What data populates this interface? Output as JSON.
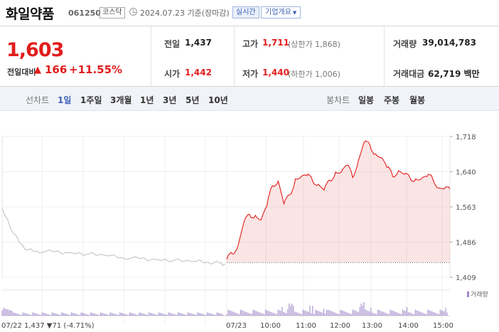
{
  "header": {
    "stock_name": "화일약품",
    "stock_code": "061250",
    "market": "코스닥",
    "as_of": "2024.07.23 기준(장마감)",
    "realtime_label": "실시간",
    "company_info_label": "기업개요"
  },
  "summary": {
    "current_price": "1,603",
    "change_label": "전일대비",
    "change_value": "166",
    "change_pct": "+11.55%",
    "prev_label": "전일",
    "prev_value": "1,437",
    "open_label": "시가",
    "open_value": "1,442",
    "high_label": "고가",
    "high_value": "1,711",
    "upper_limit": "(상한가 1,868)",
    "low_label": "저가",
    "low_value": "1,440",
    "lower_limit": "(하한가 1,006)",
    "volume_label": "거래량",
    "volume_value": "39,014,783",
    "amount_label": "거래대금",
    "amount_value": "62,719 백만"
  },
  "periods": {
    "line_label": "선차트",
    "line_items": [
      "1일",
      "1주일",
      "3개월",
      "1년",
      "3년",
      "5년",
      "10년"
    ],
    "active": "1일",
    "candle_label": "봉차트",
    "candle_items": [
      "일봉",
      "주봉",
      "월봉"
    ]
  },
  "colors": {
    "up": "#e21d1d",
    "accent": "#3a5fb5",
    "volume": "#9c85c8"
  },
  "chart_data": {
    "type": "line",
    "y_ticks": [
      "1,718",
      "1,640",
      "1,563",
      "1,486",
      "1,409"
    ],
    "ylim": [
      1409,
      1718
    ],
    "x_labels": [
      "07/22",
      "07/23",
      "10:00",
      "11:00",
      "12:00",
      "13:00",
      "14:00",
      "15:00"
    ],
    "prev_day_footer": "07/22 1,437 ▼71 (-4.71%)",
    "volume_legend": "거래량",
    "series": [
      {
        "name": "07/22",
        "x": [
          "09:00",
          "09:20",
          "09:40",
          "10:00",
          "10:30",
          "11:00",
          "11:30",
          "12:00",
          "12:30",
          "13:00",
          "13:30",
          "14:00",
          "14:30",
          "15:00",
          "15:20",
          "15:30"
        ],
        "values": [
          1560,
          1505,
          1470,
          1466,
          1465,
          1463,
          1460,
          1457,
          1452,
          1450,
          1448,
          1446,
          1444,
          1442,
          1440,
          1437
        ]
      },
      {
        "name": "07/23",
        "x": [
          "09:00",
          "09:10",
          "09:20",
          "09:30",
          "09:40",
          "09:50",
          "10:00",
          "10:10",
          "10:20",
          "10:30",
          "10:40",
          "10:50",
          "11:00",
          "11:10",
          "11:20",
          "11:30",
          "11:40",
          "11:50",
          "12:00",
          "12:10",
          "12:20",
          "12:30",
          "12:40",
          "12:50",
          "13:00",
          "13:10",
          "13:20",
          "13:30",
          "13:40",
          "13:50",
          "14:00",
          "14:10",
          "14:20",
          "14:30",
          "14:40",
          "14:50",
          "15:00",
          "15:10",
          "15:20",
          "15:30"
        ],
        "values": [
          1448,
          1460,
          1480,
          1530,
          1547,
          1545,
          1535,
          1565,
          1610,
          1620,
          1570,
          1590,
          1625,
          1630,
          1632,
          1620,
          1613,
          1600,
          1622,
          1640,
          1640,
          1655,
          1628,
          1665,
          1705,
          1700,
          1680,
          1672,
          1650,
          1630,
          1643,
          1635,
          1628,
          1625,
          1625,
          1630,
          1625,
          1605,
          1603,
          1603
        ]
      }
    ],
    "volume_footer_prev": "07/22 1,437 ▼71 (-4.71%)"
  }
}
